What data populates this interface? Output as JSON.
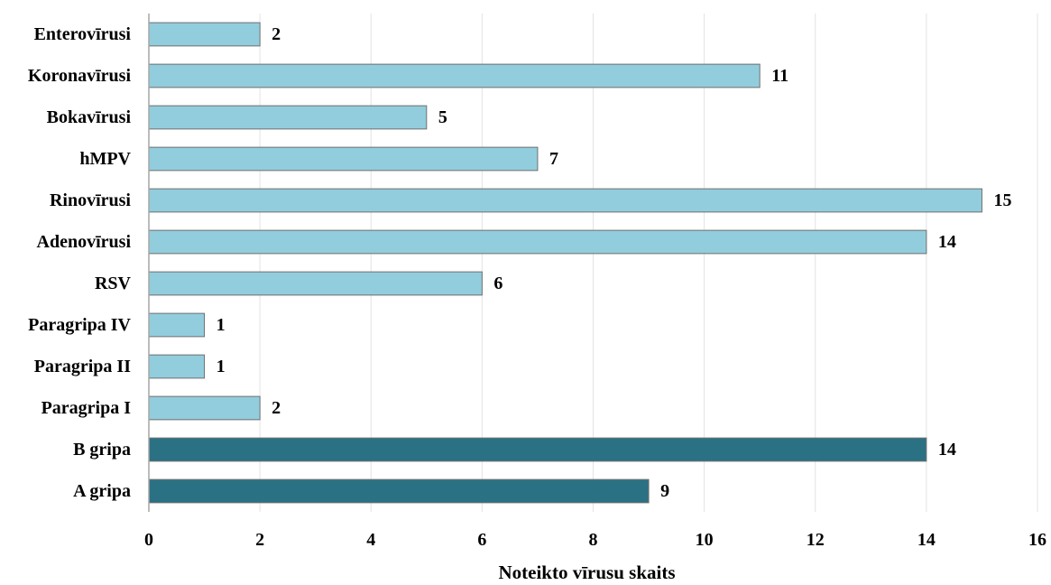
{
  "chart_data": {
    "type": "bar",
    "orientation": "horizontal",
    "categories": [
      "Enterovīrusi",
      "Koronavīrusi",
      "Bokavīrusi",
      "hMPV",
      "Rinovīrusi",
      "Adenovīrusi",
      "RSV",
      "Paragripa IV",
      "Paragripa II",
      "Paragripa I",
      "B gripa",
      "A gripa"
    ],
    "values": [
      2,
      11,
      5,
      7,
      15,
      14,
      6,
      1,
      1,
      2,
      14,
      9
    ],
    "bar_colors": [
      "#92cddd",
      "#92cddd",
      "#92cddd",
      "#92cddd",
      "#92cddd",
      "#92cddd",
      "#92cddd",
      "#92cddd",
      "#92cddd",
      "#92cddd",
      "#2b7184",
      "#2b7184"
    ],
    "xlabel": "Noteikto vīrusu skaits",
    "xlim": [
      0,
      16
    ],
    "xticks": [
      0,
      2,
      4,
      6,
      8,
      10,
      12,
      14,
      16
    ],
    "grid": "vertical",
    "data_labels": true
  }
}
